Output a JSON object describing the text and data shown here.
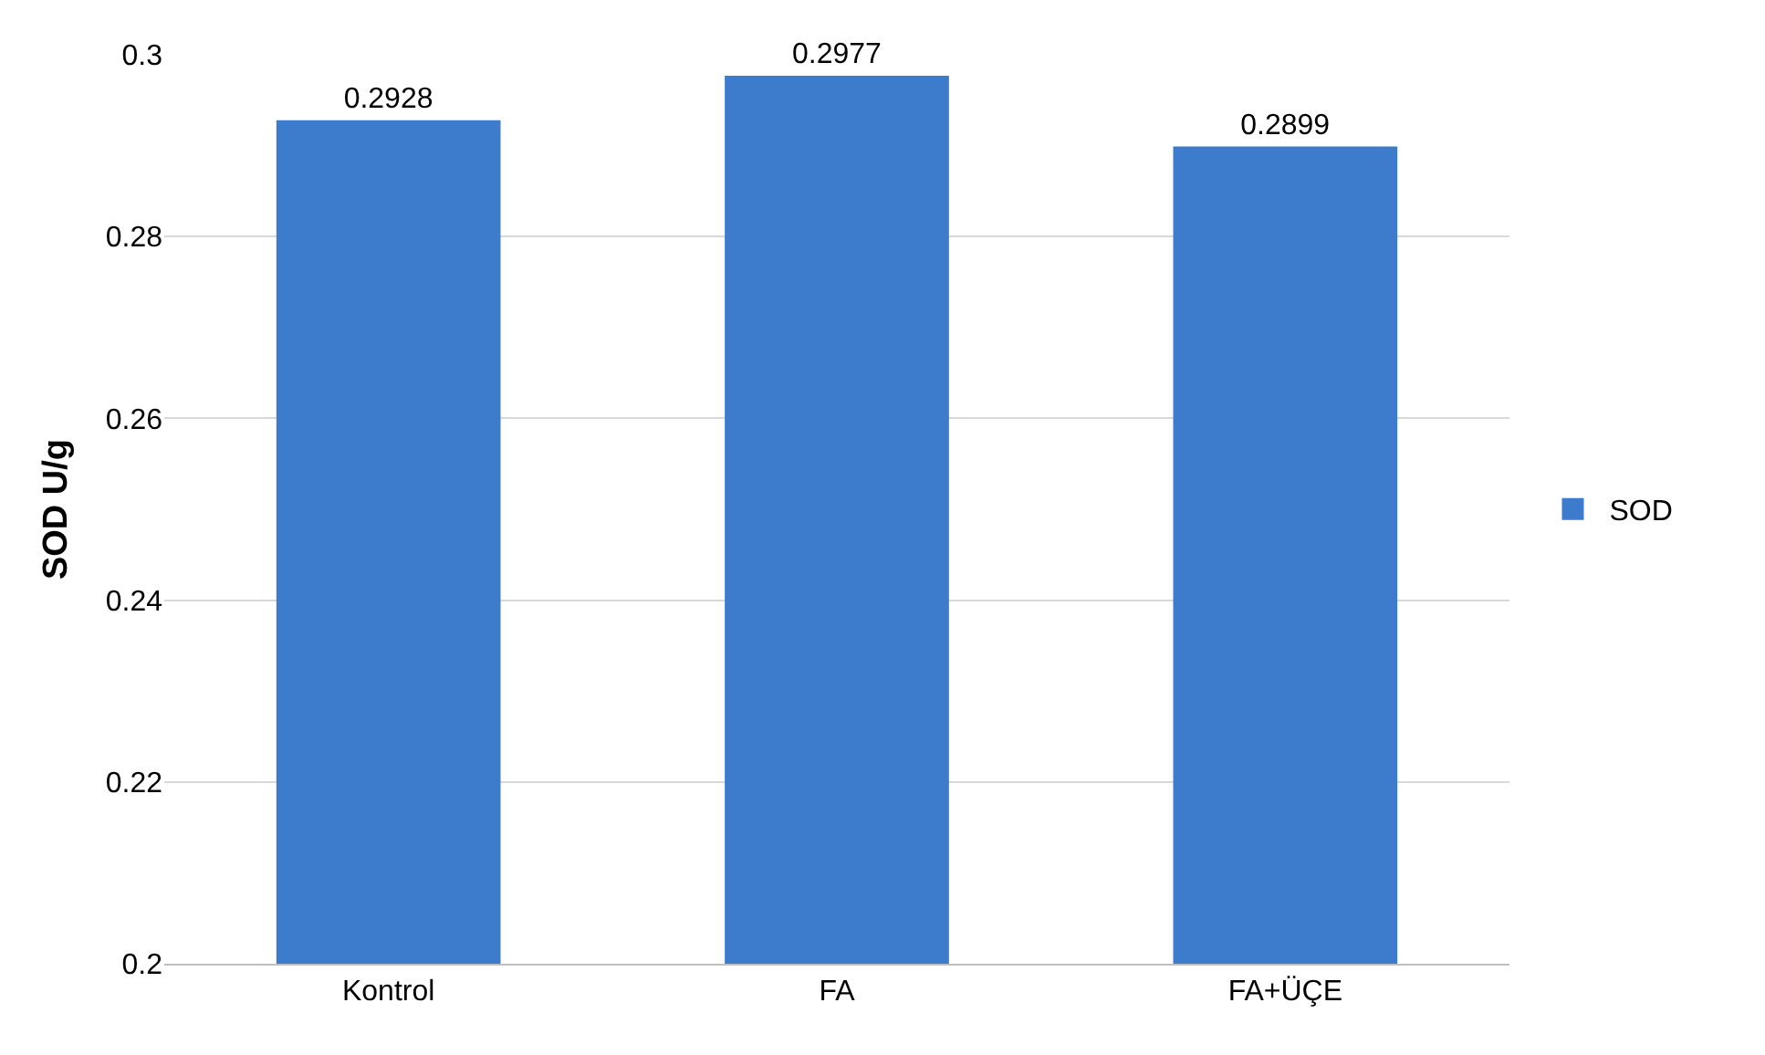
{
  "chart_data": {
    "type": "bar",
    "ylabel": "SOD U/g",
    "categories": [
      "Kontrol",
      "FA",
      "FA+ÜÇE"
    ],
    "series": [
      {
        "name": "SOD",
        "color": "#3d7ccc",
        "values": [
          0.2928,
          0.2977,
          0.2899
        ]
      }
    ],
    "ylim": [
      0.2,
      0.3
    ],
    "yticks": [
      0.2,
      0.22,
      0.24,
      0.26,
      0.28,
      0.3
    ],
    "grid": "y",
    "legend": "right",
    "data_labels": true
  }
}
